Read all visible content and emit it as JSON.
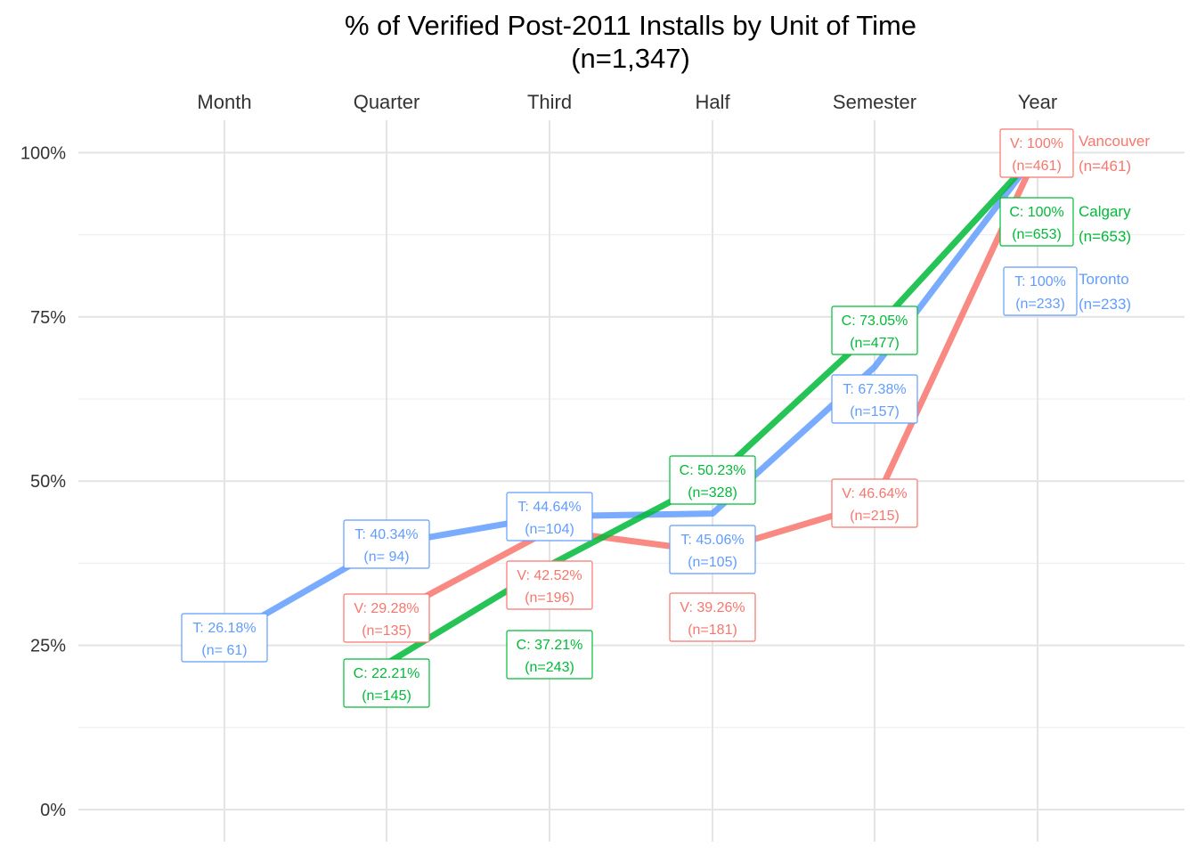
{
  "chart_data": {
    "type": "line",
    "title": "% of Verified Post-2011 Installs by Unit of Time",
    "subtitle": "(n=1,347)",
    "categories": [
      "Month",
      "Quarter",
      "Third",
      "Half",
      "Semester",
      "Year"
    ],
    "y_ticks": [
      "0%",
      "25%",
      "50%",
      "75%",
      "100%"
    ],
    "ylim": [
      0,
      100
    ],
    "grid": true,
    "series": [
      {
        "name": "Toronto",
        "color": "#619CFF",
        "values": [
          26.18,
          40.34,
          44.64,
          45.06,
          67.38,
          100
        ],
        "labels": [
          [
            "T: 26.18%",
            "(n= 61)"
          ],
          [
            "T: 40.34%",
            "(n= 94)"
          ],
          [
            "T: 44.64%",
            "(n=104)"
          ],
          [
            "T: 45.06%",
            "(n=105)"
          ],
          [
            "T: 67.38%",
            "(n=157)"
          ],
          [
            "T: 100%",
            "(n=233)"
          ]
        ],
        "end_label": [
          "Toronto",
          "(n=233)"
        ]
      },
      {
        "name": "Vancouver",
        "color": "#F8766D",
        "values": [
          null,
          29.28,
          42.52,
          39.26,
          46.64,
          100
        ],
        "labels": [
          null,
          [
            "V: 29.28%",
            "(n=135)"
          ],
          [
            "V: 42.52%",
            "(n=196)"
          ],
          [
            "V: 39.26%",
            "(n=181)"
          ],
          [
            "V: 46.64%",
            "(n=215)"
          ],
          [
            "V: 100%",
            "(n=461)"
          ]
        ],
        "end_label": [
          "Vancouver",
          "(n=461)"
        ]
      },
      {
        "name": "Calgary",
        "color": "#00BA38",
        "values": [
          null,
          22.21,
          37.21,
          50.23,
          73.05,
          100
        ],
        "labels": [
          null,
          [
            "C: 22.21%",
            "(n=145)"
          ],
          [
            "C: 37.21%",
            "(n=243)"
          ],
          [
            "C: 50.23%",
            "(n=328)"
          ],
          [
            "C: 73.05%",
            "(n=477)"
          ],
          [
            "C: 100%",
            "(n=653)"
          ]
        ],
        "end_label": [
          "Calgary",
          "(n=653)"
        ]
      }
    ]
  }
}
